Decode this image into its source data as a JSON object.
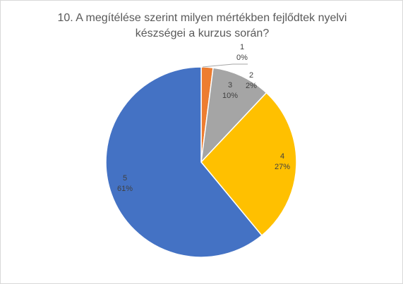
{
  "chart_data": {
    "type": "pie",
    "title_lines": [
      "10. A megítélése szerint milyen mértékben fejlődtek nyelvi",
      "készségei a kurzus során?"
    ],
    "categories": [
      "1",
      "2",
      "3",
      "4",
      "5"
    ],
    "values": [
      0,
      2,
      10,
      27,
      61
    ],
    "percent_labels": [
      "0%",
      "2%",
      "10%",
      "27%",
      "61%"
    ],
    "colors": [
      "#5b9bd5",
      "#ed7d31",
      "#a5a5a5",
      "#ffc000",
      "#4472c4"
    ],
    "legend": "none"
  }
}
